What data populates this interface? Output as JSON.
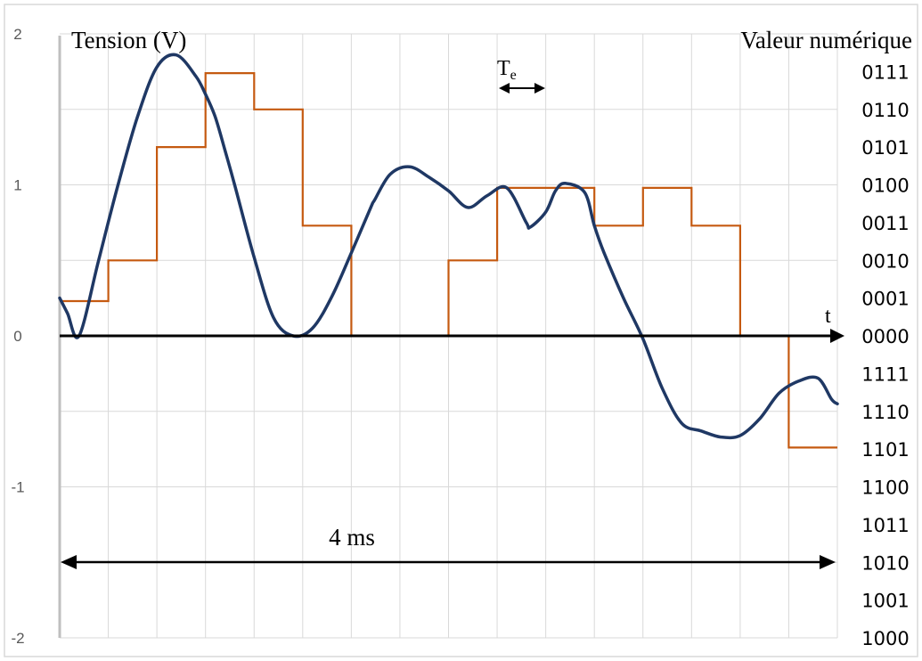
{
  "chart_data": {
    "type": "line",
    "y_axis_title": "Tension (V)",
    "right_axis_title": "Valeur numérique",
    "x_axis_label": "t",
    "period_label_main": "T",
    "period_label_sub": "e",
    "duration_label": "4 ms",
    "ylim": [
      -2,
      2
    ],
    "y_ticks": [
      2,
      1,
      0,
      -1,
      -2
    ],
    "y_tick_labels": [
      "2",
      "1",
      "0",
      "-1",
      "-2"
    ],
    "grid": true,
    "right_codes": [
      "0111",
      "0110",
      "0101",
      "0100",
      "0011",
      "0010",
      "0001",
      "0000",
      "1111",
      "1110",
      "1101",
      "1100",
      "1011",
      "1010",
      "1001",
      "1000"
    ],
    "analog_signal": {
      "x_ms": [
        0,
        0.04,
        0.1,
        0.2,
        0.3,
        0.4,
        0.5,
        0.6,
        0.7,
        0.75,
        0.8,
        0.85,
        0.9,
        1.0,
        1.1,
        1.2,
        1.3,
        1.4,
        1.5,
        1.6,
        1.62,
        1.7,
        1.8,
        1.9,
        2.0,
        2.1,
        2.2,
        2.3,
        2.4,
        2.42,
        2.5,
        2.55,
        2.6,
        2.7,
        2.75,
        2.8,
        2.9,
        3.0,
        3.1,
        3.2,
        3.3,
        3.4,
        3.5,
        3.6,
        3.7,
        3.8,
        3.9,
        3.97,
        4.0
      ],
      "y_V": [
        0.25,
        0.15,
        0.0,
        0.5,
        1.0,
        1.45,
        1.78,
        1.86,
        1.72,
        1.6,
        1.45,
        1.23,
        1.0,
        0.52,
        0.12,
        0.0,
        0.05,
        0.26,
        0.55,
        0.85,
        0.9,
        1.07,
        1.12,
        1.05,
        0.96,
        0.85,
        0.93,
        0.98,
        0.75,
        0.72,
        0.82,
        0.96,
        1.01,
        0.95,
        0.73,
        0.55,
        0.25,
        -0.02,
        -0.35,
        -0.58,
        -0.63,
        -0.67,
        -0.66,
        -0.55,
        -0.38,
        -0.3,
        -0.28,
        -0.42,
        -0.45
      ]
    },
    "quantized_signal": {
      "sample_period_ms": 0.25,
      "values_V": [
        0.23,
        0.5,
        1.25,
        1.74,
        1.5,
        0.73,
        0.0,
        0.0,
        0.5,
        0.98,
        0.98,
        0.73,
        0.98,
        0.73,
        0.0,
        -0.74
      ]
    },
    "colors": {
      "analog": "#1f3864",
      "quantized": "#c55a11",
      "grid": "#d9d9d9",
      "axis": "#000000",
      "left_axis_bar": "#bfbfbf",
      "frame": "#d9d9d9"
    }
  }
}
